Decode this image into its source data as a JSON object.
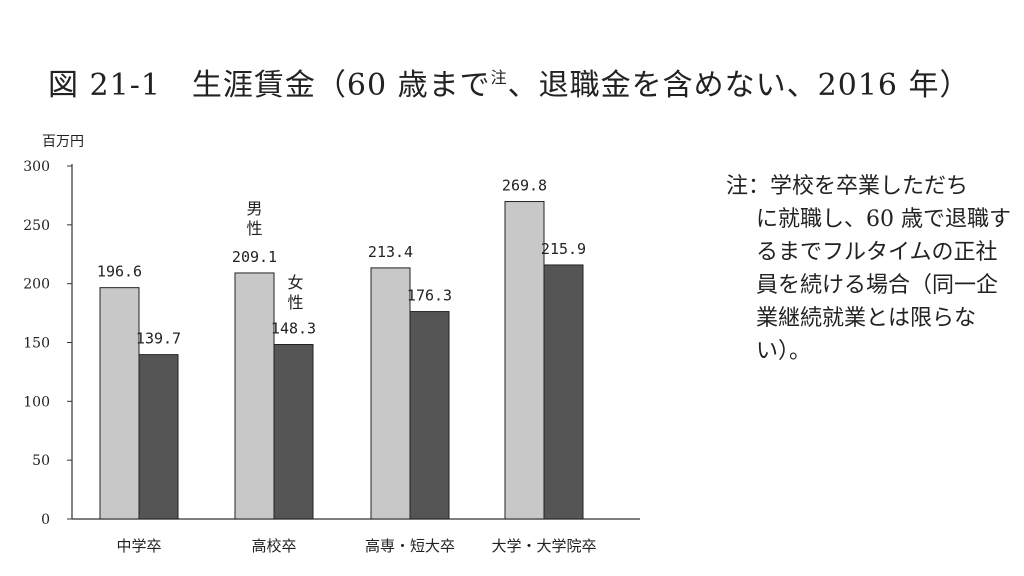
{
  "title": {
    "main": "図 21-1　生涯賃金（60 歳まで",
    "sup": "注",
    "rest": "、退職金を含めない、2016 年）"
  },
  "unit_label": "百万円",
  "note": {
    "lead": "注：学校を卒業しただち",
    "body": "に就職し、60 歳で退職するまでフルタイムの正社員を続ける場合（同一企業継続就業とは限らない）。"
  },
  "colors": {
    "male": "#c8c8c8",
    "female": "#555555",
    "axis": "#333333"
  },
  "chart_data": {
    "type": "bar",
    "title": "図 21-1　生涯賃金（60 歳まで注、退職金を含めない、2016 年）",
    "ylabel": "百万円",
    "ylim": [
      0,
      300
    ],
    "yticks": [
      0,
      50,
      100,
      150,
      200,
      250,
      300
    ],
    "grid": false,
    "categories": [
      "中学卒",
      "高校卒",
      "高専・短大卒",
      "大学・大学院卒"
    ],
    "series": [
      {
        "name": "男性",
        "values": [
          196.6,
          209.1,
          213.4,
          269.8
        ],
        "labels": [
          "196.6",
          "209.1",
          "213.4",
          "269.8"
        ]
      },
      {
        "name": "女性",
        "values": [
          139.7,
          148.3,
          176.3,
          215.9
        ],
        "labels": [
          "139.7",
          "148.3",
          "176.3",
          "215.9"
        ]
      }
    ],
    "legend": "inline-annotations",
    "legend_labels": [
      {
        "series": 0,
        "text": "男\n性"
      },
      {
        "series": 1,
        "text": "女\n性"
      }
    ]
  }
}
